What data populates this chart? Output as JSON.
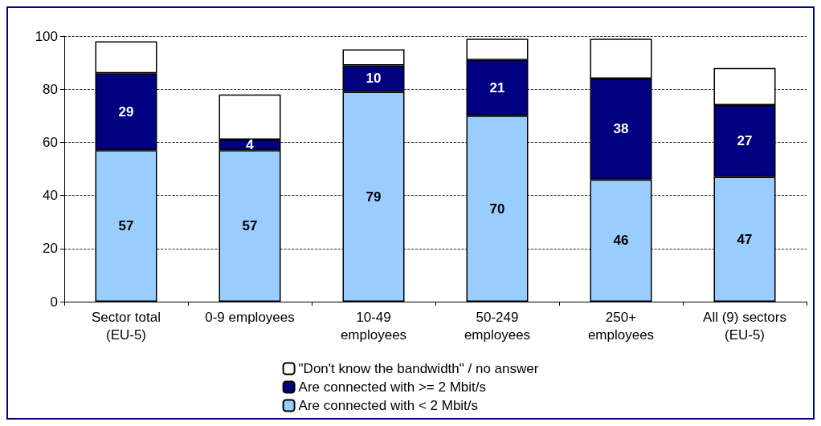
{
  "chart_data": {
    "type": "bar",
    "stacked": true,
    "categories": [
      "Sector total\n(EU-5)",
      "0-9 employees",
      "10-49\nemployees",
      "50-249\nemployees",
      "250+\nemployees",
      "All (9) sectors\n(EU-5)"
    ],
    "series": [
      {
        "name": "Are connected with < 2 Mbit/s",
        "color": "#99ccff",
        "values": [
          57,
          57,
          79,
          70,
          46,
          47
        ],
        "value_labels": [
          "57",
          "57",
          "79",
          "70",
          "46",
          "47"
        ]
      },
      {
        "name": "Are connected with >= 2 Mbit/s",
        "color": "#000080",
        "values": [
          29,
          4,
          10,
          21,
          38,
          27
        ],
        "value_labels": [
          "29",
          "4",
          "10",
          "21",
          "38",
          "27"
        ]
      },
      {
        "name": "\"Don't know the bandwidth\" / no answer",
        "color": "#ffffff",
        "values": [
          12,
          17,
          6,
          8,
          15,
          14
        ]
      }
    ],
    "ylim": [
      0,
      100
    ],
    "yticks": [
      0,
      20,
      40,
      60,
      80,
      100
    ],
    "grid": "y",
    "legend": "bottom"
  }
}
